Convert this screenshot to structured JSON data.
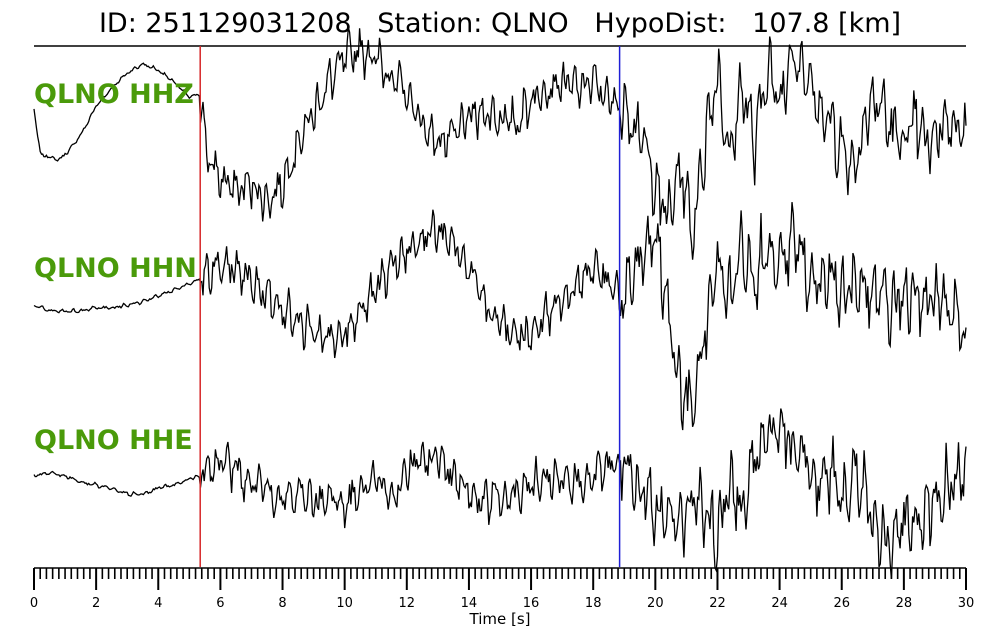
{
  "title": "ID: 251129031208   Station: QLNO   HypoDist:   107.8 [km]",
  "chart_data": {
    "type": "line",
    "xlabel": "Time [s]",
    "xlim": [
      0,
      30
    ],
    "major_ticks": [
      0,
      2,
      4,
      6,
      8,
      10,
      12,
      14,
      16,
      18,
      20,
      22,
      24,
      26,
      28,
      30
    ],
    "minor_tick_step": 0.2,
    "picks": [
      {
        "phase": "P",
        "time": 5.35,
        "color": "#d62728"
      },
      {
        "phase": "S",
        "time": 18.85,
        "color": "#1f1fd6"
      }
    ],
    "series": [
      {
        "name": "QLNO HHZ",
        "t": [
          0,
          0.2,
          0.5,
          0.8,
          1.2,
          1.6,
          2.0,
          2.5,
          3.0,
          3.5,
          4.0,
          4.5,
          5.0,
          5.35,
          5.6,
          6.0,
          6.5,
          7.0,
          7.5,
          8.0,
          8.5,
          9.0,
          9.5,
          10.0,
          10.5,
          11.0,
          11.5,
          12.0,
          12.5,
          13.0,
          13.5,
          14.0,
          14.5,
          15.0,
          15.5,
          16.0,
          16.5,
          17.0,
          17.5,
          18.0,
          18.5,
          18.85,
          19.2,
          19.6,
          20.0,
          20.4,
          20.8,
          21.2,
          21.6,
          22.0,
          22.4,
          22.8,
          23.2,
          23.6,
          24.0,
          24.4,
          24.8,
          25.2,
          25.6,
          26.0,
          26.4,
          26.8,
          27.2,
          27.6,
          28.0,
          28.4,
          28.8,
          29.2,
          29.6,
          30.0
        ],
        "v": [
          0.35,
          -0.4,
          -0.45,
          -0.5,
          -0.3,
          0.0,
          0.4,
          0.7,
          0.95,
          1.1,
          1.0,
          0.8,
          0.55,
          0.6,
          -0.5,
          -0.8,
          -1.0,
          -0.9,
          -1.2,
          -0.9,
          -0.2,
          0.3,
          0.8,
          1.2,
          1.35,
          1.2,
          0.9,
          0.6,
          0.1,
          -0.2,
          -0.1,
          0.2,
          0.3,
          0.2,
          0.1,
          0.5,
          0.7,
          0.8,
          0.7,
          0.8,
          0.5,
          0.4,
          0.3,
          -0.2,
          -0.9,
          -1.5,
          -0.6,
          -1.7,
          -0.2,
          1.0,
          -0.5,
          0.8,
          -0.3,
          1.1,
          0.4,
          1.4,
          1.0,
          0.4,
          0.2,
          -0.3,
          -0.6,
          0.3,
          0.5,
          0.0,
          -0.2,
          0.1,
          -0.3,
          0.1,
          0.2,
          -0.2
        ],
        "amplitude": 0.7
      },
      {
        "name": "QLNO HHN",
        "t": [
          0,
          0.5,
          1.0,
          1.5,
          2.0,
          2.5,
          3.0,
          3.5,
          4.0,
          4.5,
          5.0,
          5.35,
          5.7,
          6.2,
          6.8,
          7.4,
          8.0,
          8.6,
          9.2,
          9.8,
          10.4,
          11.0,
          11.6,
          12.2,
          12.8,
          13.4,
          14.0,
          14.6,
          15.2,
          15.8,
          16.4,
          17.0,
          17.6,
          18.2,
          18.85,
          19.2,
          19.6,
          20.0,
          20.4,
          20.8,
          21.2,
          21.6,
          22.0,
          22.4,
          22.8,
          23.2,
          23.6,
          24.0,
          24.4,
          24.8,
          25.2,
          25.6,
          26.0,
          26.4,
          26.8,
          27.2,
          27.6,
          28.0,
          28.4,
          28.8,
          29.2,
          29.6,
          30.0
        ],
        "v": [
          0.0,
          -0.1,
          -0.1,
          -0.1,
          -0.05,
          -0.05,
          0.0,
          0.05,
          0.15,
          0.25,
          0.35,
          0.45,
          0.55,
          0.6,
          0.5,
          0.2,
          -0.1,
          -0.3,
          -0.5,
          -0.6,
          -0.2,
          0.3,
          0.7,
          1.0,
          1.2,
          1.1,
          0.6,
          0.0,
          -0.4,
          -0.5,
          -0.2,
          0.1,
          0.4,
          0.6,
          0.1,
          0.4,
          0.9,
          1.2,
          0.0,
          -1.4,
          -1.6,
          -0.5,
          0.8,
          0.2,
          0.9,
          0.5,
          1.0,
          0.6,
          1.1,
          0.7,
          0.3,
          0.6,
          0.2,
          0.4,
          0.1,
          0.3,
          0.0,
          0.1,
          0.1,
          0.0,
          0.1,
          -0.1,
          -0.4
        ],
        "amplitude": 0.6
      },
      {
        "name": "QLNO HHE",
        "t": [
          0,
          0.5,
          1.0,
          1.5,
          2.0,
          2.5,
          3.0,
          3.5,
          4.0,
          4.5,
          5.0,
          5.35,
          5.7,
          6.2,
          6.8,
          7.4,
          8.0,
          8.6,
          9.2,
          9.8,
          10.4,
          11.0,
          11.6,
          12.2,
          12.8,
          13.4,
          14.0,
          14.6,
          15.2,
          15.8,
          16.4,
          17.0,
          17.6,
          18.2,
          18.85,
          19.2,
          19.6,
          20.0,
          20.4,
          20.8,
          21.2,
          21.6,
          22.0,
          22.4,
          22.8,
          23.2,
          23.6,
          24.0,
          24.4,
          24.8,
          25.2,
          25.6,
          26.0,
          26.4,
          26.8,
          27.2,
          27.6,
          28.0,
          28.4,
          28.8,
          29.2,
          29.6,
          30.0
        ],
        "v": [
          0.1,
          0.15,
          0.1,
          0.0,
          -0.05,
          -0.1,
          -0.2,
          -0.2,
          -0.1,
          -0.05,
          0.05,
          0.1,
          0.2,
          0.3,
          0.0,
          -0.1,
          -0.3,
          -0.2,
          -0.3,
          -0.4,
          -0.2,
          0.1,
          -0.2,
          0.3,
          0.4,
          0.2,
          -0.2,
          -0.3,
          -0.2,
          -0.1,
          0.0,
          0.1,
          0.0,
          0.2,
          0.3,
          0.1,
          -0.2,
          -0.4,
          -0.5,
          -0.7,
          -0.2,
          -0.6,
          -0.8,
          0.0,
          -0.4,
          0.3,
          0.8,
          1.0,
          0.5,
          0.4,
          0.0,
          0.2,
          -0.2,
          0.1,
          -0.3,
          -0.8,
          -1.0,
          -0.6,
          -0.7,
          -0.4,
          -0.2,
          0.0,
          0.2
        ],
        "amplitude": 0.6
      }
    ]
  }
}
